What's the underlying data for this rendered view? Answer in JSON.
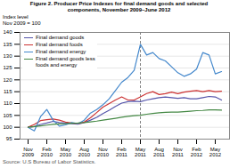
{
  "chart_data": {
    "type": "line",
    "title": "Figure 2. Producer Price Indexes for final demand goods and selected\ncomponents, November 2009–June 2012",
    "ylabel": "Index level\nNov 2009 = 100",
    "source": "Source: U.S Bureau of Labor Statistics.",
    "categories": [
      "Nov\n2009",
      null,
      null,
      "Feb\n2010",
      null,
      null,
      "May\n2010",
      null,
      null,
      "Aug\n2010",
      null,
      null,
      "Nov\n2010",
      null,
      null,
      "Feb\n2011",
      null,
      null,
      "May\n2011",
      null,
      null,
      "Aug\n2011",
      null,
      null,
      "Nov\n2011",
      null,
      null,
      "Feb\n2012",
      null,
      null,
      "May\n2012",
      null
    ],
    "series": [
      {
        "name": "Final demand goods",
        "color": "#5555aa",
        "values": [
          100.0,
          100.3,
          101.2,
          101.8,
          102.5,
          102.0,
          101.8,
          101.5,
          101.3,
          102.0,
          103.0,
          104.2,
          105.8,
          107.2,
          108.8,
          110.2,
          110.8,
          111.0,
          110.8,
          111.5,
          112.0,
          112.5,
          112.8,
          112.5,
          112.2,
          112.5,
          112.0,
          112.0,
          112.5,
          113.0,
          112.8,
          111.5
        ]
      },
      {
        "name": "Final demand foods",
        "color": "#cc3333",
        "values": [
          100.0,
          101.2,
          102.8,
          103.2,
          103.5,
          103.0,
          102.2,
          101.8,
          101.5,
          102.2,
          104.0,
          106.2,
          108.5,
          110.0,
          111.5,
          112.8,
          111.5,
          111.5,
          112.8,
          114.2,
          115.0,
          113.8,
          114.2,
          114.8,
          114.2,
          114.8,
          115.2,
          115.5,
          115.0,
          115.5,
          115.0,
          115.2
        ]
      },
      {
        "name": "Final demand energy",
        "color": "#4488cc",
        "values": [
          100.0,
          98.5,
          104.5,
          107.5,
          103.0,
          100.5,
          101.0,
          102.0,
          101.5,
          103.0,
          106.0,
          107.5,
          109.5,
          112.0,
          115.5,
          119.0,
          121.0,
          124.0,
          135.0,
          130.5,
          131.5,
          129.0,
          128.0,
          125.5,
          123.0,
          121.5,
          122.5,
          124.5,
          131.5,
          130.5,
          122.5,
          123.5
        ]
      },
      {
        "name": "Final demand goods less\nfoods and energy",
        "color": "#448844",
        "values": [
          100.0,
          100.3,
          100.6,
          100.9,
          101.2,
          101.4,
          101.5,
          101.7,
          101.8,
          102.0,
          102.3,
          102.6,
          103.0,
          103.4,
          103.8,
          104.2,
          104.6,
          104.9,
          105.1,
          105.5,
          105.8,
          106.1,
          106.3,
          106.4,
          106.4,
          106.6,
          106.8,
          107.0,
          107.1,
          107.3,
          107.3,
          107.2
        ]
      }
    ],
    "ylim": [
      95,
      140
    ],
    "yticks": [
      95,
      100,
      105,
      110,
      115,
      120,
      125,
      130,
      135,
      140
    ],
    "grid": true,
    "legend": "upper left",
    "vline": "May\n2011"
  }
}
